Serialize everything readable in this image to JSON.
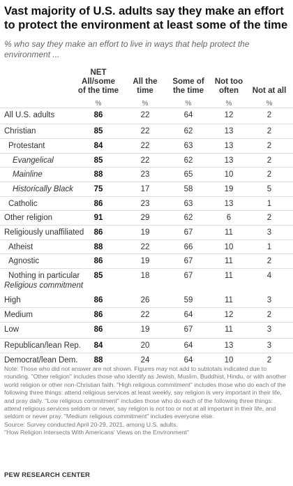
{
  "title": "Vast majority of U.S. adults say they make an effort to protect the environment at least some of the time",
  "subtitle": "% who say they make an effort to live in ways that help protect the environment ...",
  "chart_data": {
    "type": "table",
    "columns": [
      "NET All/some of the time",
      "All the time",
      "Some of the time",
      "Not too often",
      "Not at all"
    ],
    "unit": "%",
    "rows": [
      {
        "label": "All U.S. adults",
        "values": [
          "86",
          "22",
          "64",
          "12",
          "2"
        ]
      },
      {
        "label": "Christian",
        "values": [
          "85",
          "22",
          "62",
          "13",
          "2"
        ]
      },
      {
        "label": "Protestant",
        "values": [
          "84",
          "22",
          "63",
          "13",
          "2"
        ]
      },
      {
        "label": "Evangelical",
        "values": [
          "85",
          "22",
          "62",
          "13",
          "2"
        ]
      },
      {
        "label": "Mainline",
        "values": [
          "88",
          "23",
          "65",
          "10",
          "2"
        ]
      },
      {
        "label": "Historically Black",
        "values": [
          "75",
          "17",
          "58",
          "19",
          "5"
        ]
      },
      {
        "label": "Catholic",
        "values": [
          "86",
          "23",
          "63",
          "13",
          "1"
        ]
      },
      {
        "label": "Other religion",
        "values": [
          "91",
          "29",
          "62",
          "6",
          "2"
        ]
      },
      {
        "label": "Religiously unaffiliated",
        "values": [
          "86",
          "19",
          "67",
          "11",
          "3"
        ]
      },
      {
        "label": "Atheist",
        "values": [
          "88",
          "22",
          "66",
          "10",
          "1"
        ]
      },
      {
        "label": "Agnostic",
        "values": [
          "86",
          "19",
          "67",
          "11",
          "2"
        ]
      },
      {
        "label": "Nothing in particular",
        "values": [
          "85",
          "18",
          "67",
          "11",
          "4"
        ]
      },
      {
        "label": "High",
        "values": [
          "86",
          "26",
          "59",
          "11",
          "3"
        ]
      },
      {
        "label": "Medium",
        "values": [
          "86",
          "22",
          "64",
          "12",
          "2"
        ]
      },
      {
        "label": "Low",
        "values": [
          "86",
          "19",
          "67",
          "11",
          "3"
        ]
      },
      {
        "label": "Republican/lean Rep.",
        "values": [
          "84",
          "20",
          "64",
          "13",
          "3"
        ]
      },
      {
        "label": "Democrat/lean Dem.",
        "values": [
          "88",
          "24",
          "64",
          "10",
          "2"
        ]
      }
    ]
  },
  "section_label": "Religious commitment",
  "note": "Note: Those who did not answer are not shown. Figures may not add to subtotals indicated due to rounding. \"Other religion\" includes those who identify as Jewish, Muslim, Buddhist, Hindu, or with another world religion or other non-Christian faith. \"High religious commitment\" includes those who do each of the following three things: attend religious services at least weekly, say religion is very important in their life, and pray daily. \"Low religious commitment\" includes those who do each of the following three things: attend religious services seldom or never, say religion is not too or not at all important in their life, and seldom or never pray. \"Medium religious commitment\" includes everyone else.",
  "source": "Source: Survey conducted April 20-29, 2021, among U.S. adults.",
  "report": "\"How Religion Intersects With Americans' Views on the Environment\"",
  "brand": "PEW RESEARCH CENTER"
}
